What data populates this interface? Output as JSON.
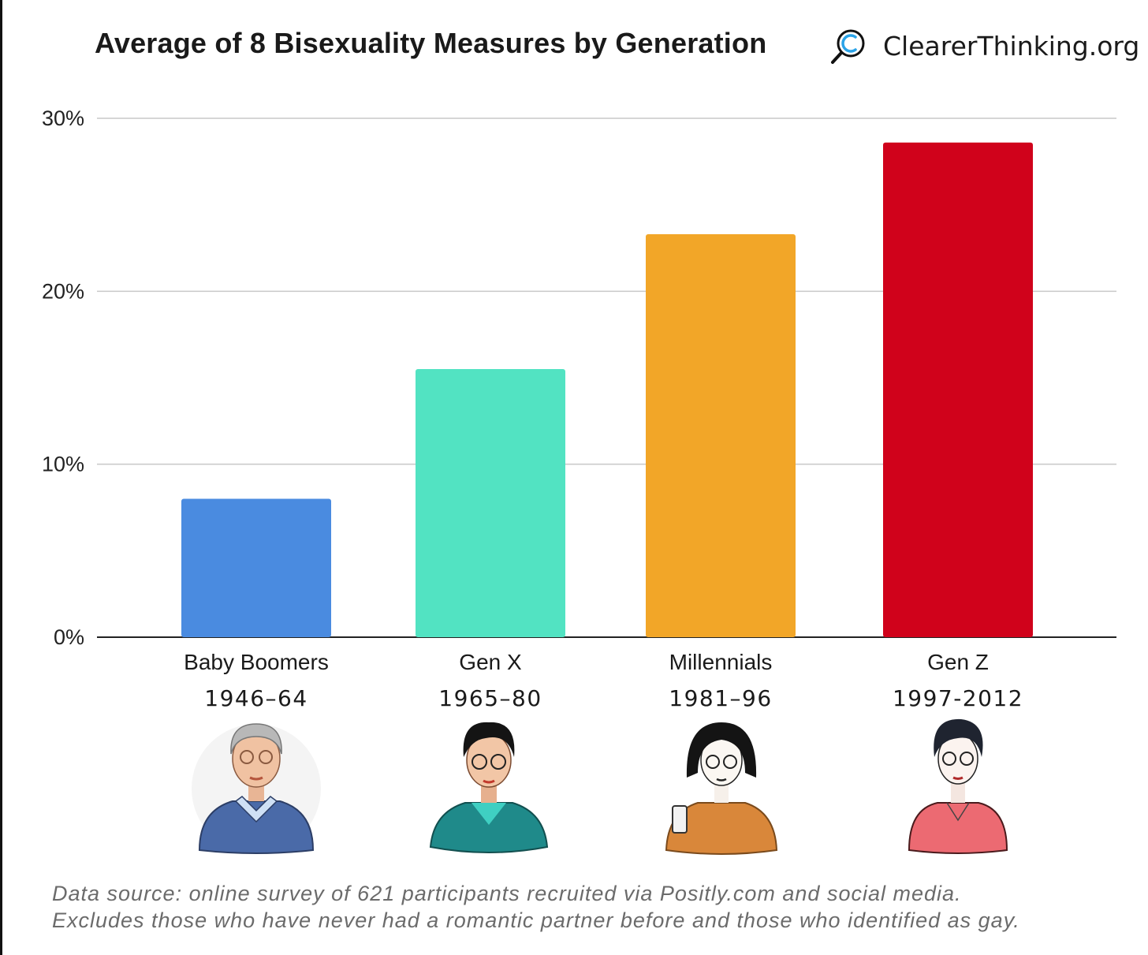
{
  "chart_data": {
    "type": "bar",
    "title": "Average of 8 Bisexuality Measures by Generation",
    "categories": [
      "Baby Boomers",
      "Gen X",
      "Millennials",
      "Gen Z"
    ],
    "category_years": [
      "1946–64",
      "1965–80",
      "1981–96",
      "1997-2012"
    ],
    "values": [
      8.0,
      15.5,
      23.3,
      28.6
    ],
    "value_unit": "%",
    "ylim": [
      0,
      30
    ],
    "yticks": [
      0,
      10,
      20,
      30
    ],
    "ytick_labels": [
      "0%",
      "10%",
      "20%",
      "30%"
    ],
    "grid": true,
    "bar_colors": [
      "#4a8be0",
      "#52e3c2",
      "#f2a628",
      "#d0021b"
    ],
    "avatar_icons": [
      "older-man-avatar-icon",
      "genx-man-avatar-icon",
      "millennial-woman-avatar-icon",
      "genz-person-avatar-icon"
    ]
  },
  "logo": {
    "text": "ClearerThinking.org",
    "icon": "magnifier-c-logo-icon"
  },
  "footnote": {
    "line1": "Data source: online survey of 621 participants recruited via Positly.com and social media.",
    "line2": "Excludes those who have never had a romantic partner before and those who identified as gay."
  }
}
